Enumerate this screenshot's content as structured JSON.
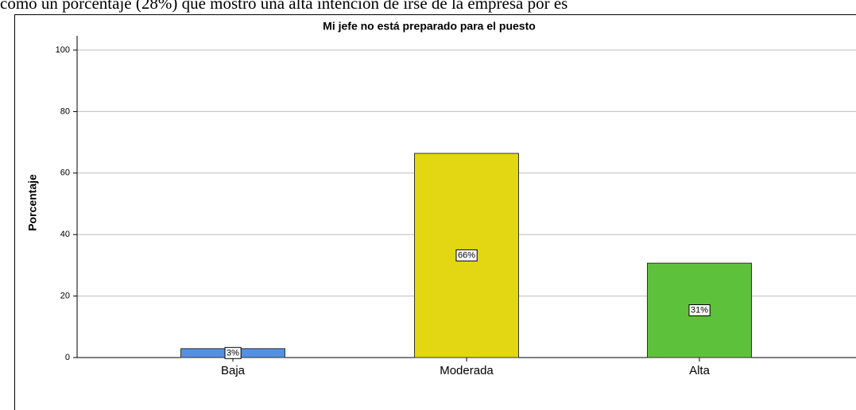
{
  "text_above": "como un porcentaje (28%) que mostró una alta intención de irse de la empresa por es",
  "chart_data": {
    "type": "bar",
    "title": "Mi jefe no está preparado para el puesto",
    "y_label": "Porcentaje",
    "categories": [
      "Baja",
      "Moderada",
      "Alta"
    ],
    "values": [
      2.9,
      66.4,
      30.7
    ],
    "value_labels": [
      "3%",
      "66%",
      "31%"
    ],
    "colors": [
      "#5590e0",
      "#e2d712",
      "#5ec13c"
    ],
    "ylim": [
      0,
      100
    ],
    "yticks": [
      0,
      20,
      40,
      60,
      80,
      100
    ],
    "grid": true
  }
}
